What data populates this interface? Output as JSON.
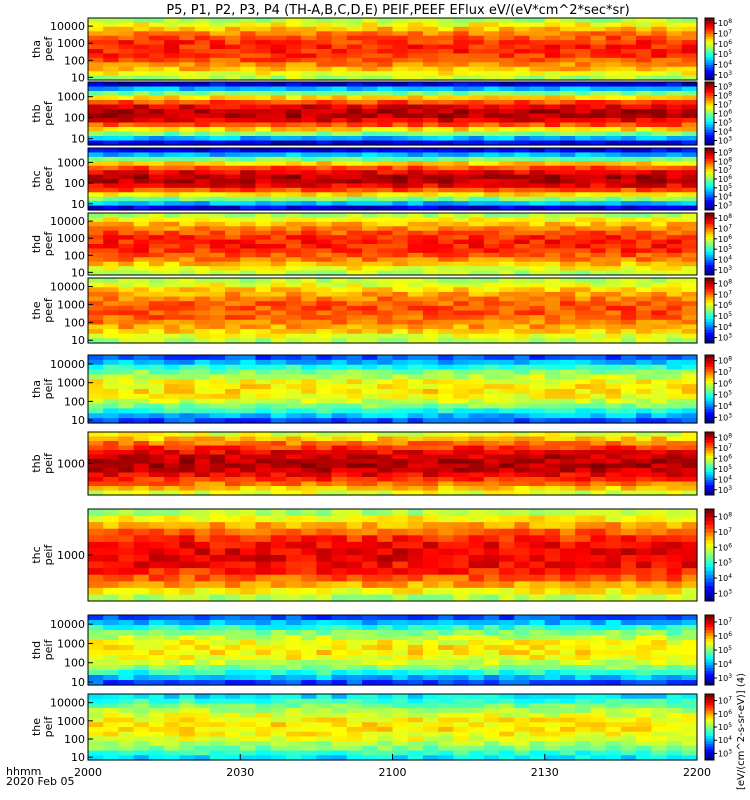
{
  "title": "P5, P1, P2, P3, P4 (TH-A,B,C,D,E) PEIF,PEEF EFlux eV/(eV*cm^2*sec*sr)",
  "footer": {
    "time_label": "hhmm",
    "date_label": "2020 Feb 05"
  },
  "x_ticks": [
    "2000",
    "2030",
    "2100",
    "2130",
    "2200"
  ],
  "colorbar_label": "[eV/(cm^2-s-sr-eV)] (4)",
  "chart_data": {
    "type": "heatmap",
    "x_range": [
      "20:00",
      "22:00"
    ],
    "x_ticks": [
      "2000",
      "2030",
      "2100",
      "2130",
      "2200"
    ],
    "panels": [
      {
        "probe": "tha",
        "species": "peef",
        "ylabel": "tha\npeef",
        "y_ticks": [
          "10",
          "100",
          "1000",
          "10000"
        ],
        "ylim": [
          7,
          30000
        ],
        "scale": "log",
        "cbar_ticks": [
          "10^3",
          "10^4",
          "10^5",
          "10^6",
          "10^7",
          "10^8"
        ],
        "color_level": [
          0.55,
          0.85
        ]
      },
      {
        "probe": "thb",
        "species": "peef",
        "ylabel": "thb\npeef",
        "y_ticks": [
          "10",
          "100",
          "1000"
        ],
        "ylim": [
          5,
          5000
        ],
        "scale": "log",
        "cbar_ticks": [
          "10^3",
          "10^4",
          "10^5",
          "10^6",
          "10^7",
          "10^8",
          "10^9"
        ],
        "color_level": [
          0.1,
          0.95
        ]
      },
      {
        "probe": "thc",
        "species": "peef",
        "ylabel": "thc\npeef",
        "y_ticks": [
          "10",
          "100",
          "1000"
        ],
        "ylim": [
          5,
          5000
        ],
        "scale": "log",
        "cbar_ticks": [
          "10^3",
          "10^4",
          "10^5",
          "10^6",
          "10^7",
          "10^8",
          "10^9"
        ],
        "color_level": [
          0.1,
          0.95
        ]
      },
      {
        "probe": "thd",
        "species": "peef",
        "ylabel": "thd\npeef",
        "y_ticks": [
          "10",
          "100",
          "1000",
          "10000"
        ],
        "ylim": [
          7,
          30000
        ],
        "scale": "log",
        "cbar_ticks": [
          "10^3",
          "10^4",
          "10^5",
          "10^6",
          "10^7",
          "10^8"
        ],
        "color_level": [
          0.55,
          0.85
        ]
      },
      {
        "probe": "the",
        "species": "peef",
        "ylabel": "the\npeef",
        "y_ticks": [
          "10",
          "100",
          "1000",
          "10000"
        ],
        "ylim": [
          7,
          30000
        ],
        "scale": "log",
        "cbar_ticks": [
          "10^3",
          "10^4",
          "10^5",
          "10^6",
          "10^7",
          "10^8"
        ],
        "color_level": [
          0.55,
          0.8
        ]
      },
      {
        "probe": "tha",
        "species": "peif",
        "ylabel": "tha\npeif",
        "y_ticks": [
          "10",
          "100",
          "1000",
          "10000"
        ],
        "ylim": [
          7,
          30000
        ],
        "scale": "log",
        "cbar_ticks": [
          "10^3",
          "10^4",
          "10^5",
          "10^6",
          "10^7",
          "10^8"
        ],
        "color_level": [
          0.2,
          0.65
        ]
      },
      {
        "probe": "thb",
        "species": "peif",
        "ylabel": "thb\npeif",
        "y_ticks": [
          "1000"
        ],
        "ylim": [
          100,
          10000
        ],
        "scale": "log",
        "cbar_ticks": [
          "10^3",
          "10^4",
          "10^5",
          "10^6",
          "10^7",
          "10^8"
        ],
        "color_level": [
          0.6,
          0.95
        ]
      },
      {
        "probe": "thc",
        "species": "peif",
        "ylabel": "thc\npeif",
        "y_ticks": [
          "1000"
        ],
        "ylim": [
          100,
          10000
        ],
        "scale": "log",
        "cbar_ticks": [
          "10^3",
          "10^4",
          "10^5",
          "10^6",
          "10^7",
          "10^8"
        ],
        "color_level": [
          0.55,
          0.9
        ]
      },
      {
        "probe": "thd",
        "species": "peif",
        "ylabel": "thd\npeif",
        "y_ticks": [
          "10",
          "100",
          "1000",
          "10000"
        ],
        "ylim": [
          7,
          30000
        ],
        "scale": "log",
        "cbar_ticks": [
          "10^3",
          "10^4",
          "10^5",
          "10^6",
          "10^7"
        ],
        "color_level": [
          0.2,
          0.65
        ]
      },
      {
        "probe": "the",
        "species": "peif",
        "ylabel": "the\npeif",
        "y_ticks": [
          "10",
          "100",
          "1000",
          "10000"
        ],
        "ylim": [
          7,
          30000
        ],
        "scale": "log",
        "cbar_ticks": [
          "10^3",
          "10^4",
          "10^5",
          "10^6",
          "10^7"
        ],
        "color_level": [
          0.35,
          0.65
        ]
      }
    ]
  }
}
